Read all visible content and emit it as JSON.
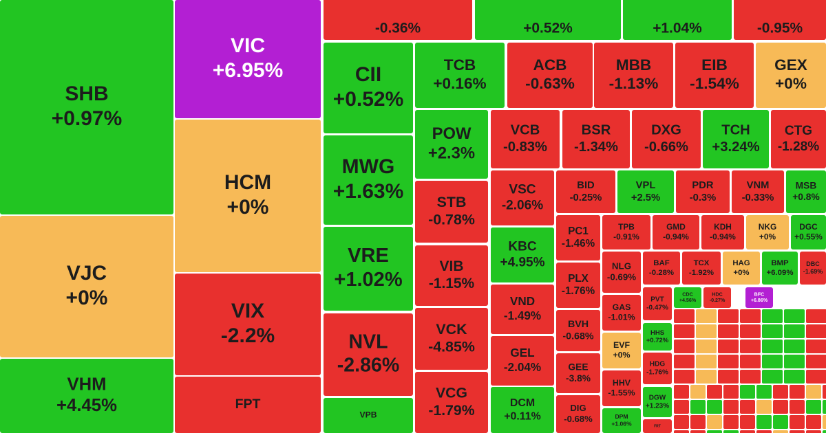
{
  "tiles": [
    {
      "label": "SHB",
      "change": "+0.97%",
      "color": "#22c522"
    },
    {
      "label": "VJC",
      "change": "+0%",
      "color": "#f7ba57"
    },
    {
      "label": "VHM",
      "change": "+4.45%",
      "color": "#22c522"
    },
    {
      "label": "VIC",
      "change": "+6.95%",
      "color": "#b31fd3",
      "text_color": "#ffffff"
    },
    {
      "label": "HCM",
      "change": "+0%",
      "color": "#f7ba57"
    },
    {
      "label": "VIX",
      "change": "-2.2%",
      "color": "#e8302e"
    },
    {
      "label": "FPT",
      "color": "#e8302e"
    },
    {
      "change": "-0.36%",
      "color": "#e8302e"
    },
    {
      "change": "+0.52%",
      "color": "#22c522"
    },
    {
      "change": "+1.04%",
      "color": "#22c522"
    },
    {
      "change": "-0.95%",
      "color": "#e8302e"
    },
    {
      "label": "CII",
      "change": "+0.52%",
      "color": "#22c522"
    },
    {
      "label": "MWG",
      "change": "+1.63%",
      "color": "#22c522"
    },
    {
      "label": "VRE",
      "change": "+1.02%",
      "color": "#22c522"
    },
    {
      "label": "NVL",
      "change": "-2.86%",
      "color": "#e8302e"
    },
    {
      "label": "VPB",
      "color": "#22c522"
    },
    {
      "label": "TCB",
      "change": "+0.16%",
      "color": "#22c522"
    },
    {
      "label": "ACB",
      "change": "-0.63%",
      "color": "#e8302e"
    },
    {
      "label": "MBB",
      "change": "-1.13%",
      "color": "#e8302e"
    },
    {
      "label": "EIB",
      "change": "-1.54%",
      "color": "#e8302e"
    },
    {
      "label": "GEX",
      "change": "+0%",
      "color": "#f7ba57"
    },
    {
      "label": "POW",
      "change": "+2.3%",
      "color": "#22c522"
    },
    {
      "label": "VCB",
      "change": "-0.83%",
      "color": "#e8302e"
    },
    {
      "label": "BSR",
      "change": "-1.34%",
      "color": "#e8302e"
    },
    {
      "label": "DXG",
      "change": "-0.66%",
      "color": "#e8302e"
    },
    {
      "label": "TCH",
      "change": "+3.24%",
      "color": "#22c522"
    },
    {
      "label": "CTG",
      "change": "-1.28%",
      "color": "#e8302e"
    },
    {
      "label": "STB",
      "change": "-0.78%",
      "color": "#e8302e"
    },
    {
      "label": "VIB",
      "change": "-1.15%",
      "color": "#e8302e"
    },
    {
      "label": "VCK",
      "change": "-4.85%",
      "color": "#e8302e"
    },
    {
      "label": "VCG",
      "change": "-1.79%",
      "color": "#e8302e"
    },
    {
      "label": "VSC",
      "change": "-2.06%",
      "color": "#e8302e"
    },
    {
      "label": "KBC",
      "change": "+4.95%",
      "color": "#22c522"
    },
    {
      "label": "VND",
      "change": "-1.49%",
      "color": "#e8302e"
    },
    {
      "label": "GEL",
      "change": "-2.04%",
      "color": "#e8302e"
    },
    {
      "label": "DCM",
      "change": "+0.11%",
      "color": "#22c522"
    },
    {
      "label": "BID",
      "change": "-0.25%",
      "color": "#e8302e"
    },
    {
      "label": "VPL",
      "change": "+2.5%",
      "color": "#22c522"
    },
    {
      "label": "PDR",
      "change": "-0.3%",
      "color": "#e8302e"
    },
    {
      "label": "VNM",
      "change": "-0.33%",
      "color": "#e8302e"
    },
    {
      "label": "MSB",
      "change": "+0.8%",
      "color": "#22c522"
    },
    {
      "label": "PC1",
      "change": "-1.46%",
      "color": "#e8302e"
    },
    {
      "label": "PLX",
      "change": "-1.76%",
      "color": "#e8302e"
    },
    {
      "label": "BVH",
      "change": "-0.68%",
      "color": "#e8302e"
    },
    {
      "label": "GEE",
      "change": "-3.8%",
      "color": "#e8302e"
    },
    {
      "label": "DIG",
      "change": "-0.68%",
      "color": "#e8302e"
    },
    {
      "label": "TPB",
      "change": "-0.91%",
      "color": "#e8302e"
    },
    {
      "label": "GMD",
      "change": "-0.94%",
      "color": "#e8302e"
    },
    {
      "label": "KDH",
      "change": "-0.94%",
      "color": "#e8302e"
    },
    {
      "label": "NKG",
      "change": "+0%",
      "color": "#f7ba57"
    },
    {
      "label": "DGC",
      "change": "+0.55%",
      "color": "#22c522"
    },
    {
      "label": "NLG",
      "change": "-0.69%",
      "color": "#e8302e"
    },
    {
      "label": "GAS",
      "change": "-1.01%",
      "color": "#e8302e"
    },
    {
      "label": "EVF",
      "change": "+0%",
      "color": "#f7ba57"
    },
    {
      "label": "HHV",
      "change": "-1.55%",
      "color": "#e8302e"
    },
    {
      "label": "DPM",
      "change": "+1.06%",
      "color": "#22c522"
    },
    {
      "label": "BAF",
      "change": "-0.28%",
      "color": "#e8302e"
    },
    {
      "label": "TCX",
      "change": "-1.92%",
      "color": "#e8302e"
    },
    {
      "label": "HAG",
      "change": "+0%",
      "color": "#f7ba57"
    },
    {
      "label": "BMP",
      "change": "+6.09%",
      "color": "#22c522"
    },
    {
      "label": "DBC",
      "change": "-1.69%",
      "color": "#e8302e"
    },
    {
      "label": "PVT",
      "change": "-0.47%",
      "color": "#e8302e"
    },
    {
      "label": "CDC",
      "change": "+4.56%",
      "color": "#22c522"
    },
    {
      "label": "HDC",
      "change": "-0.27%",
      "color": "#e8302e"
    },
    {
      "label": "BFC",
      "change": "+6.86%",
      "color": "#b31fd3",
      "text_color": "#ffffff"
    },
    {
      "label": "HHS",
      "change": "+0.72%",
      "color": "#22c522"
    },
    {
      "label": "HDG",
      "change": "-1.76%",
      "color": "#e8302e"
    },
    {
      "label": "DGW",
      "change": "+1.23%",
      "color": "#22c522"
    },
    {
      "label": "FRT",
      "color": "#e8302e"
    }
  ]
}
